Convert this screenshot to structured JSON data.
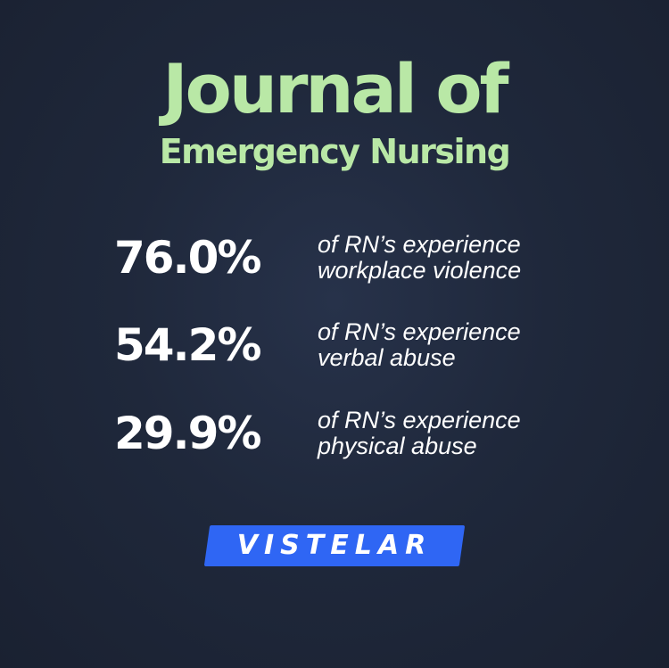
{
  "header": {
    "title_line1": "Journal of",
    "title_line2": "Emergency Nursing"
  },
  "stats": [
    {
      "value": "76.0%",
      "line1": "of RN’s experience",
      "line2": "workplace violence"
    },
    {
      "value": "54.2%",
      "line1": "of RN’s experience",
      "line2": "verbal abuse"
    },
    {
      "value": "29.9%",
      "line1": "of RN’s experience",
      "line2": "physical abuse"
    }
  ],
  "brand": {
    "logo_text": "VISTELAR"
  },
  "colors": {
    "background": "#1f283b",
    "title": "#b9e8a6",
    "text": "#ffffff",
    "logo_bg": "#2f66f4"
  }
}
